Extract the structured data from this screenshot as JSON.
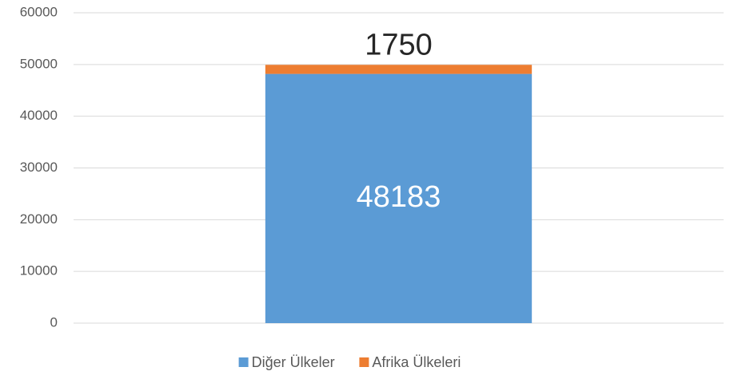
{
  "chart_data": {
    "type": "stacked_bar",
    "categories": [
      null
    ],
    "series": [
      {
        "name": "Diğer Ülkeler",
        "color": "#5b9bd5",
        "values": [
          48183
        ]
      },
      {
        "name": "Afrika Ülkeleri",
        "color": "#ed7d31",
        "values": [
          1750
        ]
      }
    ],
    "ylim": [
      0,
      60000
    ],
    "yticks": [
      0,
      10000,
      20000,
      30000,
      40000,
      50000,
      60000
    ],
    "grid": true,
    "legend": "bottom"
  }
}
